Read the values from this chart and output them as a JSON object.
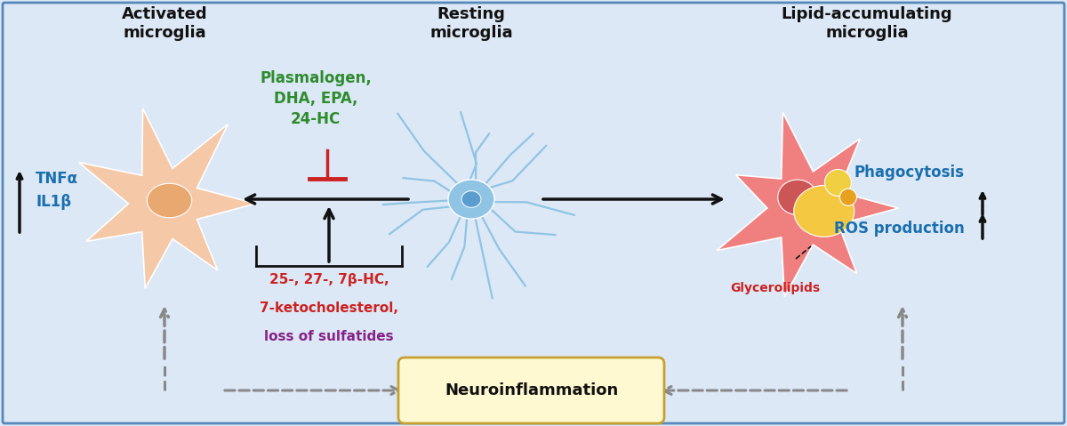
{
  "bg_color": "#dce8f5",
  "border_color": "#5588bb",
  "title_activated": "Activated\nmicroglia",
  "title_resting": "Resting\nmicroglia",
  "title_lipid": "Lipid-accumulating\nmicroglia",
  "label_tnf": "TNFα\nIL1β",
  "label_plasmalogen": "Plasmalogen,\nDHA, EPA,\n24-HC",
  "label_oxysterols_line1": "25-, 27-, 7β-HC,",
  "label_oxysterols_line2": "7-ketocholesterol,",
  "label_oxysterols_line3": "loss of sulfatides",
  "label_glycerolipids": "Glycerolipids",
  "label_phagocytosis": "Phagocytosis",
  "label_ros": "ROS production",
  "label_neuroinflammation": "Neuroinflammation",
  "color_blue_label": "#1a6faf",
  "color_green_label": "#2e8b2e",
  "color_red_label": "#cc2222",
  "color_purple_label": "#882288",
  "color_black": "#111111",
  "color_arrow_gray": "#888888",
  "activated_cell_color": "#f5c9a8",
  "activated_nucleus_color": "#e8a870",
  "resting_cell_color": "#90c4e4",
  "resting_nucleus_color": "#5599cc",
  "lipid_cell_color": "#f08080",
  "lipid_nucleus_color": "#cc5555",
  "lipid_drop1_color": "#f5c842",
  "lipid_drop2_color": "#f0d040",
  "lipid_drop3_color": "#e8a020"
}
